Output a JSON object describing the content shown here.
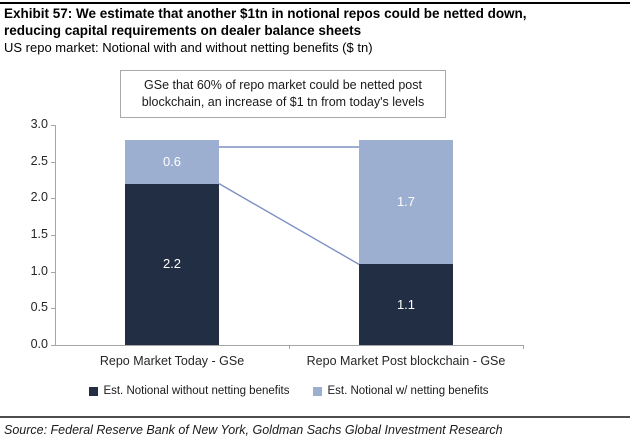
{
  "header": {
    "title_line1": "Exhibit 57: We estimate that another $1tn in notional repos could be netted down,",
    "title_line2": "reducing capital requirements on dealer balance sheets",
    "subtitle": "US repo market: Notional with and without netting benefits ($ tn)"
  },
  "annotation": {
    "line1": "GSe that 60% of repo market could be netted post",
    "line2": "blockchain, an increase of $1 tn from today's levels"
  },
  "chart_data": {
    "type": "bar",
    "stacked": true,
    "title": "US repo market: Notional with and without netting benefits ($ tn)",
    "categories": [
      "Repo Market Today - GSe",
      "Repo Market Post blockchain - GSe"
    ],
    "series": [
      {
        "name": "Est. Notional without netting benefits",
        "values": [
          2.2,
          1.1
        ],
        "color": "#212e44"
      },
      {
        "name": "Est. Notional w/ netting benefits",
        "values": [
          0.6,
          1.7
        ],
        "color": "#9dafd0"
      }
    ],
    "ylim": [
      0.0,
      3.0
    ],
    "yticks": [
      3.0,
      2.5,
      2.0,
      1.5,
      1.0,
      0.5,
      0.0
    ],
    "grid": false,
    "legend_position": "bottom",
    "data_labels": true,
    "data_label_color": "#ffffff",
    "axis_color": "#a6a6a6",
    "connector_color": "#7e91c5",
    "connectors": [
      {
        "from": 2.7,
        "to": 2.7
      },
      {
        "from": 2.2,
        "to": 1.1
      }
    ]
  },
  "source": {
    "text": "Source: Federal Reserve Bank of New York, Goldman Sachs Global Investment Research"
  }
}
